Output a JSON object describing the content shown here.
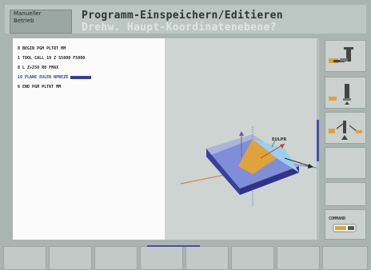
{
  "header": {
    "mode_lines": [
      "Manueller",
      "Betrieb"
    ],
    "title": "Programm-Einspeichern/Editieren",
    "prompt": "Drehw. Haupt-Koordinatenebene?"
  },
  "program": {
    "lines": [
      {
        "text": "0  BEGIN PGM PLTRT MM",
        "active": false
      },
      {
        "text": "1  TOOL CALL 10 Z S5000 F5000",
        "active": false
      },
      {
        "text": "8  L  Z+250 R0 FMAX",
        "active": false
      },
      {
        "text": "10  PLANE EULER NPREZE",
        "active": true
      },
      {
        "text": "6  END PGM PLTRT MM",
        "active": false
      }
    ]
  },
  "graphic": {
    "label": "EULPR"
  },
  "softkeys": {
    "side": [
      "",
      "",
      "",
      "",
      "",
      "COMMAND"
    ],
    "bottom": [
      "",
      "",
      "",
      "",
      "",
      "",
      "",
      "",
      ""
    ]
  },
  "colors": {
    "background": "#aab4b1",
    "accent": "#3a3ca0",
    "graphic_bg": "#cdd4d2"
  },
  "icons": [
    "tool-axis-up-icon",
    "tool-axis-down-icon",
    "tool-tilt-icon",
    "command-toggle-icon"
  ]
}
